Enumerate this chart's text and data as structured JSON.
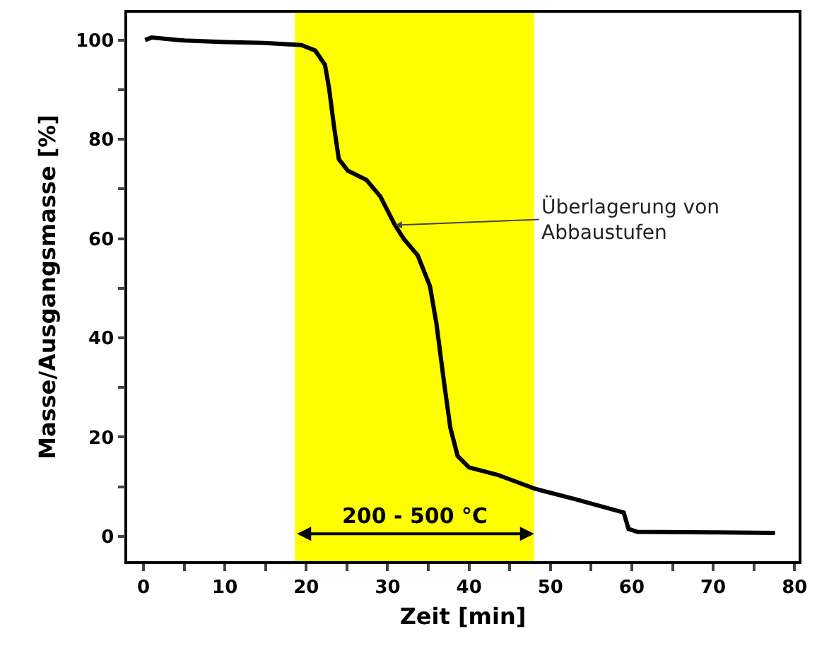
{
  "chart_data": {
    "type": "line",
    "xlabel": "Zeit [min]",
    "ylabel": "Masse/Ausgangsmasse [%]",
    "x": [
      0.2,
      1,
      5,
      10,
      14.8,
      19.4,
      21.1,
      22.3,
      22.8,
      23.4,
      24,
      25.1,
      27.4,
      29.1,
      30.9,
      32,
      33.7,
      35.2,
      36,
      36.9,
      37.7,
      38.6,
      40,
      43.5,
      48.1,
      53,
      59,
      59.6,
      60.7,
      70,
      77.6
    ],
    "series": [
      {
        "color": "#000000",
        "values": [
          100,
          100.5,
          99.9,
          99.6,
          99.4,
          99,
          97.9,
          95,
          90.3,
          82.7,
          76,
          73.7,
          71.8,
          68.5,
          62.7,
          59.9,
          56.6,
          50.4,
          42.8,
          31.4,
          21.9,
          16.2,
          13.9,
          12.4,
          9.6,
          7.5,
          4.8,
          1.5,
          0.9,
          0.8,
          0.7
        ]
      }
    ],
    "xlim": [
      -2,
      80.5
    ],
    "ylim": [
      -5,
      105.5
    ],
    "xticks": [
      0,
      {
        "value": 5,
        "label": null
      },
      10,
      {
        "value": 15,
        "label": null
      },
      20,
      {
        "value": 25,
        "label": null
      },
      30,
      {
        "value": 35,
        "label": null
      },
      40,
      {
        "value": 45,
        "label": null
      },
      50,
      {
        "value": 55,
        "label": null
      },
      60,
      {
        "value": 65,
        "label": null
      },
      70,
      {
        "value": 75,
        "label": null
      },
      80
    ],
    "yticks": [
      0,
      {
        "value": 10,
        "label": null
      },
      20,
      {
        "value": 30,
        "label": null
      },
      40,
      {
        "value": 50,
        "label": null
      },
      60,
      {
        "value": 70,
        "label": null
      },
      80,
      {
        "value": 90,
        "label": null
      },
      100
    ],
    "bands": [
      {
        "axis": "x",
        "from": 18.6,
        "to": 48,
        "label": "200 - 500 °C",
        "color": "#ffff00"
      }
    ],
    "annotations": [
      {
        "text": "Überlagerung von\nAbbaustufen",
        "x": 30.9,
        "y": 62.7
      }
    ],
    "grid": false,
    "marker": "none",
    "line_style": "solid"
  }
}
